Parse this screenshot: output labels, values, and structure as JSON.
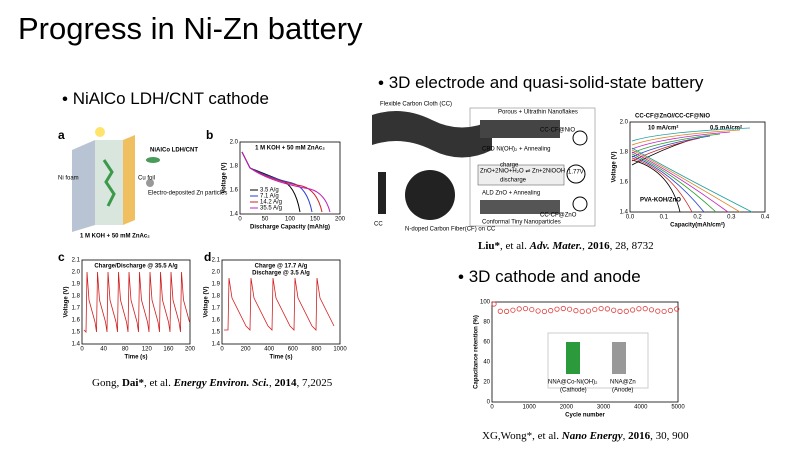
{
  "title": "Progress in Ni-Zn battery",
  "left": {
    "bullet": "NiAlCo LDH/CNT cathode",
    "citation": [
      "Gong, ",
      "Dai*",
      ", et al. ",
      "Energy Environ. Sci.",
      ", ",
      "2014",
      ", 7,2025"
    ],
    "panel_a": {
      "label": "a",
      "texts": [
        "Ni foam",
        "Cu foil",
        "NiAlCo LDH/CNT",
        "Electro-deposited Zn particles",
        "1 M KOH + 50 mM ZnAc₂"
      ]
    },
    "panel_b": {
      "label": "b",
      "note": "1 M KOH + 50 mM ZnAc₂",
      "y_title": "Voltage (V)",
      "x_title": "Discharge Capacity (mAh/g)",
      "xticks": [
        "0",
        "50",
        "100",
        "150",
        "200"
      ],
      "yticks": [
        "1.4",
        "1.6",
        "1.8",
        "2.0"
      ],
      "series": [
        {
          "name": "3.5 A/g",
          "color": "#000000"
        },
        {
          "name": "7.1 A/g",
          "color": "#2b3fd0"
        },
        {
          "name": "14.2 A/g",
          "color": "#d02020"
        },
        {
          "name": "35.5 A/g",
          "color": "#c020c0"
        }
      ]
    },
    "panel_c": {
      "label": "c",
      "note": "Charge/Discharge @ 35.5 A/g",
      "y_title": "Voltage (V)",
      "x_title": "Time (s)",
      "xticks": [
        "0",
        "40",
        "80",
        "120",
        "160",
        "200"
      ],
      "yticks": [
        "1.4",
        "1.5",
        "1.6",
        "1.7",
        "1.8",
        "1.9",
        "2.0",
        "2.1"
      ]
    },
    "panel_d": {
      "label": "d",
      "note": [
        "Charge @ 17.7 A/g",
        "Discharge @ 3.5 A/g"
      ],
      "y_title": "Voltage (V)",
      "x_title": "Time (s)",
      "xticks": [
        "0",
        "200",
        "400",
        "600",
        "800",
        "1000"
      ],
      "yticks": [
        "1.4",
        "1.5",
        "1.6",
        "1.7",
        "1.8",
        "1.9",
        "2.0",
        "2.1"
      ]
    }
  },
  "right_top": {
    "bullet": "3D electrode and quasi-solid-state battery",
    "citation": [
      "Liu*",
      ", et al. ",
      "Adv. Mater.",
      ", ",
      "2016",
      ", 28, 8732"
    ],
    "schematic": {
      "texts": [
        "Flexible Carbon Cloth (CC)",
        "Porous + Ultrathin Nanoflakes",
        "CC-CF@NiO",
        "CBD Ni(OH)₂ + Annealing",
        "ZnO+2NiO+H₂O ⇌ Zn+2NiOOH",
        "charge",
        "discharge",
        "1.77V",
        "ALD ZnO + Annealing",
        "Conformal Tiny Nanoparticles",
        "CC-CF@ZnO",
        "N-doped Carbon Fiber(CF) on CC",
        "CC"
      ]
    },
    "panel_e": {
      "title": "CC-CF@ZnO//CC-CF@NiO",
      "rate_high": "10 mA/cm²",
      "rate_low": "0.5 mA/cm²",
      "electrolyte": "PVA-KOH/ZnO",
      "y_title": "Voltage (V)",
      "x_title": "Capacity(mAh/cm²)",
      "xticks": [
        "0.0",
        "0.1",
        "0.2",
        "0.3",
        "0.4"
      ],
      "yticks": [
        "1.4",
        "1.6",
        "1.8",
        "2.0"
      ]
    }
  },
  "right_bottom": {
    "bullet": "3D cathode and anode",
    "citation": [
      "XG,Wong*",
      ", et al. ",
      "Nano Energy",
      ", ",
      "2016",
      ", 30, 900"
    ],
    "panel_f": {
      "y_title": "Capacitance retention (%)",
      "x_title": "Cycle number",
      "cathode": [
        "NNA@Co-Ni(OH)₂",
        "(Cathode)"
      ],
      "anode": [
        "NNA@Zn",
        "(Anode)"
      ],
      "xticks": [
        "0",
        "1000",
        "2000",
        "3000",
        "4000",
        "5000"
      ],
      "yticks": [
        "0",
        "20",
        "40",
        "60",
        "80",
        "100"
      ]
    }
  }
}
